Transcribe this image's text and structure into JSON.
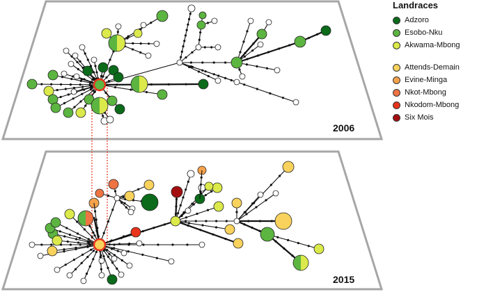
{
  "legend": {
    "title": "Landraces",
    "items": [
      {
        "label": "Adzoro",
        "color": "#0b6b1a"
      },
      {
        "label": "Esobo-Nku",
        "color": "#5cb540"
      },
      {
        "label": "Akwama-Mbong",
        "color": "#dbea4a"
      },
      {
        "label": "Attends-Demain",
        "color": "#f8d25c"
      },
      {
        "label": "Evine-Minga",
        "color": "#f5a24c"
      },
      {
        "label": "Nkot-Mbong",
        "color": "#ee7443"
      },
      {
        "label": "Nkodom-Mbong",
        "color": "#e8341c"
      },
      {
        "label": "Six Mois",
        "color": "#a30f0f"
      }
    ]
  },
  "panels": {
    "top_year": "2006",
    "bottom_year": "2015"
  }
}
